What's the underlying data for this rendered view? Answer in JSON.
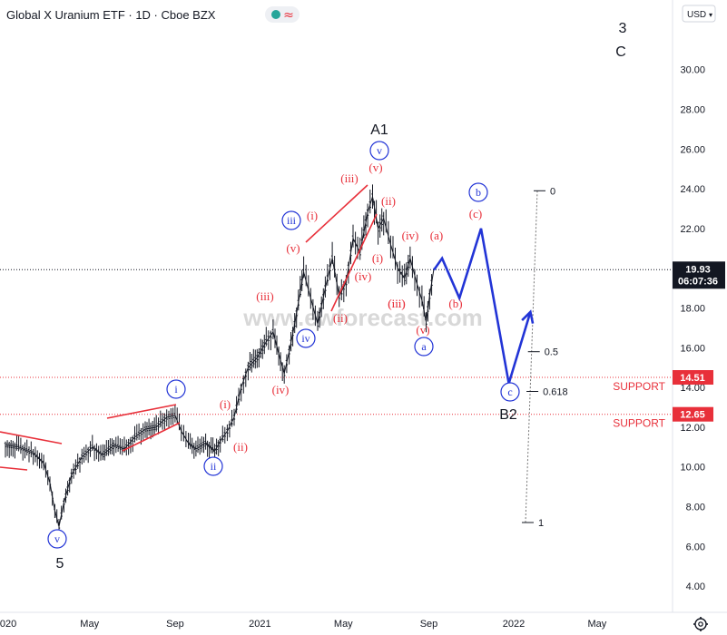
{
  "header": {
    "title": "Global X Uranium ETF · 1D · Cboe BZX",
    "indicator_glyph": "≈",
    "currency": "USD"
  },
  "watermark": "www.ewforecast.com",
  "colors": {
    "red": "#e8303a",
    "blue": "#2234d6",
    "axis_bg": "#ffffff",
    "candle": "#131722",
    "last_price_bg": "#131722",
    "support_bg": "#e8303a"
  },
  "icons": {
    "settings": "gear-icon",
    "indicator": "wave-indicator-icon"
  },
  "chart_data": {
    "type": "line",
    "ylim": [
      3.0,
      32.5
    ],
    "y_ticks": [
      "4.00",
      "6.00",
      "8.00",
      "10.00",
      "12.00",
      "14.00",
      "16.00",
      "18.00",
      "20.00",
      "22.00",
      "24.00",
      "26.00",
      "28.00",
      "30.00"
    ],
    "x_ticks": [
      "2020",
      "May",
      "Sep",
      "2021",
      "May",
      "Sep",
      "2022",
      "May"
    ],
    "last_price": {
      "value": "19.93",
      "time": "06:07:36"
    },
    "support_levels": [
      {
        "value": "14.51",
        "label": "SUPPORT"
      },
      {
        "value": "12.65",
        "label": "SUPPORT"
      }
    ],
    "series": [
      {
        "values": [
          [
            "2020-01-01",
            11.1
          ],
          [
            "2020-01-20",
            11.0
          ],
          [
            "2020-02-10",
            10.7
          ],
          [
            "2020-02-25",
            10.2
          ],
          [
            "2020-03-05",
            9.2
          ],
          [
            "2020-03-12",
            7.8
          ],
          [
            "2020-03-18",
            7.0
          ],
          [
            "2020-03-25",
            8.2
          ],
          [
            "2020-04-05",
            9.6
          ],
          [
            "2020-04-20",
            10.5
          ],
          [
            "2020-05-05",
            11.0
          ],
          [
            "2020-05-20",
            10.6
          ],
          [
            "2020-06-05",
            11.1
          ],
          [
            "2020-06-20",
            10.9
          ],
          [
            "2020-07-05",
            11.5
          ],
          [
            "2020-07-20",
            11.9
          ],
          [
            "2020-08-05",
            12.0
          ],
          [
            "2020-08-20",
            12.5
          ],
          [
            "2020-09-01",
            12.6
          ],
          [
            "2020-09-10",
            11.8
          ],
          [
            "2020-09-20",
            11.2
          ],
          [
            "2020-10-01",
            10.9
          ],
          [
            "2020-10-15",
            11.2
          ],
          [
            "2020-10-28",
            10.8
          ],
          [
            "2020-11-05",
            11.3
          ],
          [
            "2020-11-15",
            11.8
          ],
          [
            "2020-11-25",
            12.5
          ],
          [
            "2020-12-05",
            14.0
          ],
          [
            "2020-12-15",
            15.0
          ],
          [
            "2020-12-28",
            15.5
          ],
          [
            "2021-01-10",
            16.3
          ],
          [
            "2021-01-20",
            16.8
          ],
          [
            "2021-01-28",
            15.7
          ],
          [
            "2021-02-05",
            14.7
          ],
          [
            "2021-02-12",
            15.8
          ],
          [
            "2021-02-20",
            17.2
          ],
          [
            "2021-02-28",
            18.8
          ],
          [
            "2021-03-05",
            19.8
          ],
          [
            "2021-03-15",
            18.5
          ],
          [
            "2021-03-25",
            17.2
          ],
          [
            "2021-04-05",
            19.0
          ],
          [
            "2021-04-15",
            20.5
          ],
          [
            "2021-04-25",
            18.6
          ],
          [
            "2021-05-05",
            19.3
          ],
          [
            "2021-05-15",
            21.5
          ],
          [
            "2021-05-25",
            20.8
          ],
          [
            "2021-06-05",
            22.8
          ],
          [
            "2021-06-12",
            23.6
          ],
          [
            "2021-06-20",
            22.0
          ],
          [
            "2021-06-28",
            22.5
          ],
          [
            "2021-07-08",
            21.2
          ],
          [
            "2021-07-18",
            20.0
          ],
          [
            "2021-07-28",
            19.5
          ],
          [
            "2021-08-05",
            20.5
          ],
          [
            "2021-08-15",
            19.2
          ],
          [
            "2021-08-22",
            18.4
          ],
          [
            "2021-08-28",
            17.3
          ],
          [
            "2021-09-02",
            18.6
          ],
          [
            "2021-09-08",
            19.93
          ]
        ]
      }
    ],
    "projection": {
      "points": [
        [
          "2021-09-08",
          19.93
        ],
        [
          "2021-09-10",
          20.0
        ],
        [
          "2021-09-20",
          20.5
        ],
        [
          "2021-10-15",
          18.5
        ],
        [
          "2021-11-15",
          22.0
        ],
        [
          "2021-12-25",
          14.2
        ],
        [
          "2022-01-25",
          17.8
        ]
      ]
    },
    "fib": {
      "levels": [
        {
          "label": "0",
          "value": 23.9
        },
        {
          "label": "0.5",
          "value": 15.8
        },
        {
          "label": "0.618",
          "value": 13.8
        },
        {
          "label": "1",
          "value": 7.2
        }
      ]
    },
    "wave_labels": {
      "red": [
        "(i)",
        "(ii)",
        "(iii)",
        "(iv)",
        "(v)",
        "(i)",
        "(ii)",
        "(iii)",
        "(iv)",
        "(v)",
        "(iii)",
        "(iv)",
        "(v)",
        "(i)",
        "(ii)",
        "(iii)",
        "(a)",
        "(b)",
        "(c)"
      ],
      "blue_circled": [
        "v",
        "i",
        "ii",
        "iii",
        "iv",
        "v",
        "a",
        "b",
        "c"
      ],
      "black": [
        "5",
        "A1",
        "B2",
        "3",
        "C"
      ]
    }
  }
}
